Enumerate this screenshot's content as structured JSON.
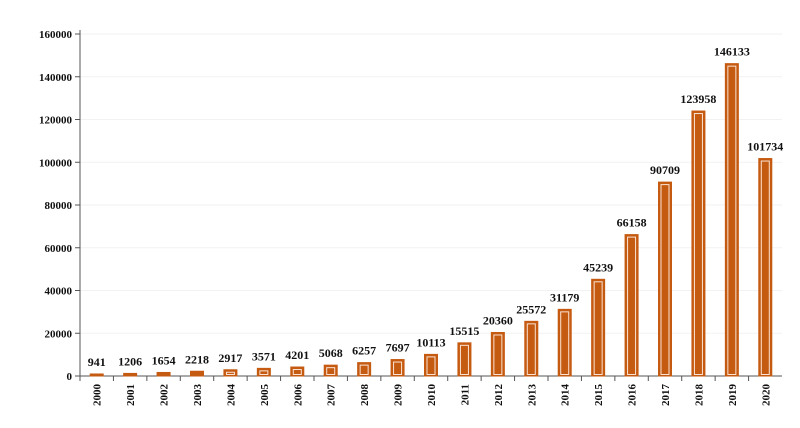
{
  "chart_data": {
    "type": "bar",
    "categories": [
      "2000",
      "2001",
      "2002",
      "2003",
      "2004",
      "2005",
      "2006",
      "2007",
      "2008",
      "2009",
      "2010",
      "2011",
      "2012",
      "2013",
      "2014",
      "2015",
      "2016",
      "2017",
      "2018",
      "2019",
      "2020"
    ],
    "values": [
      941,
      1206,
      1654,
      2218,
      2917,
      3571,
      4201,
      5068,
      6257,
      7697,
      10113,
      15515,
      20360,
      25572,
      31179,
      45239,
      66158,
      90709,
      123958,
      146133,
      101734
    ],
    "data_labels": [
      "941",
      "1206",
      "1654",
      "2218",
      "2917",
      "3571",
      "4201",
      "5068",
      "6257",
      "7697",
      "10113",
      "15515",
      "20360",
      "25572",
      "31179",
      "45239",
      "66158",
      "90709",
      "123958",
      "146133",
      "101734"
    ],
    "y_ticks": [
      0,
      20000,
      40000,
      60000,
      80000,
      100000,
      120000,
      140000,
      160000
    ],
    "y_tick_labels": [
      "0",
      "20000",
      "40000",
      "60000",
      "80000",
      "100000",
      "120000",
      "140000",
      "160000"
    ],
    "ylim": [
      0,
      160000
    ],
    "grid": true,
    "legend": "none",
    "bar_fill": "#c55a11",
    "bar_stroke": "#c55a11",
    "bar_inner": "#fbe4d5"
  }
}
